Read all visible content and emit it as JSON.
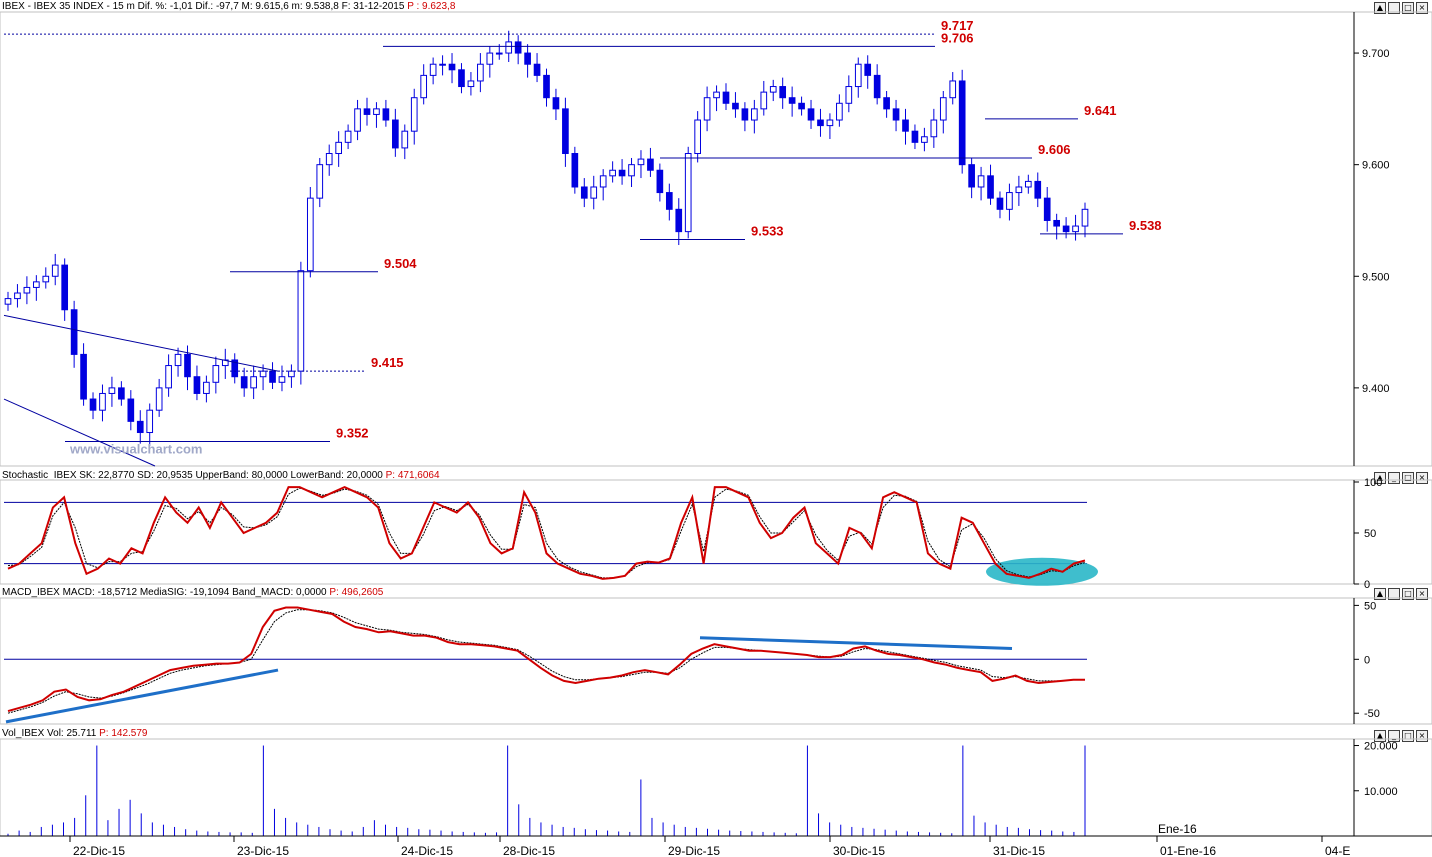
{
  "header": {
    "main": {
      "symbol": "IBEX - IBEX 35 INDEX - ",
      "interval": "15 m",
      "stats": " Dif. %: -1,01  Dif.: -97,7  M: 9.615,6  m: 9.538,8  F: 31-12-2015 ",
      "price": "P : 9.623,8"
    },
    "stoch": {
      "text": "Stochastic_IBEX SK: 22,8770  SD: 20,9535  UpperBand: 80,0000  LowerBand: 20,0000 ",
      "price": "P: 471,6064"
    },
    "macd": {
      "text": "MACD_IBEX MACD: -18,5712  MediaSIG: -19,1094  Band_MACD: 0,0000 ",
      "price": "P: 496,2605"
    },
    "vol": {
      "text": "Vol_IBEX Vol: 25.711 ",
      "price": "P: 142.579"
    }
  },
  "watermark": "www.visualchart.com",
  "window_buttons": [
    "▲",
    "_",
    "□",
    "×"
  ],
  "colors": {
    "candle": "#0000e0",
    "trendline": "#0000a0",
    "annotation": "#d00000",
    "stoch_k": "#d00000",
    "macd_line": "#d00000",
    "signal_line": "#000000",
    "highlight_ellipse": "#2ab7c8",
    "macd_divergence": "#1e6fc8"
  },
  "chart_data": [
    {
      "type": "candlestick",
      "title": "IBEX - IBEX 35 INDEX - 15 m",
      "y_ticks": [
        "9.700",
        "9.600",
        "9.500",
        "9.400"
      ],
      "ylim": [
        9330,
        9735
      ],
      "x_labels": [
        "22-Dic-15",
        "23-Dic-15",
        "24-Dic-15",
        "28-Dic-15",
        "29-Dic-15",
        "30-Dic-15",
        "31-Dic-15",
        "01-Ene-16",
        "04-E"
      ],
      "x_extra_label": "Ene-16",
      "annotations": [
        {
          "label": "9.717",
          "value": 9717
        },
        {
          "label": "9.706",
          "value": 9706
        },
        {
          "label": "9.641",
          "value": 9641
        },
        {
          "label": "9.606",
          "value": 9606
        },
        {
          "label": "9.533",
          "value": 9533
        },
        {
          "label": "9.538",
          "value": 9538
        },
        {
          "label": "9.504",
          "value": 9504
        },
        {
          "label": "9.415",
          "value": 9415
        },
        {
          "label": "9.352",
          "value": 9352
        }
      ],
      "close_series": [
        9480,
        9485,
        9490,
        9495,
        9500,
        9510,
        9470,
        9430,
        9390,
        9380,
        9395,
        9400,
        9390,
        9370,
        9360,
        9380,
        9400,
        9420,
        9430,
        9410,
        9395,
        9405,
        9420,
        9425,
        9410,
        9400,
        9410,
        9415,
        9405,
        9410,
        9415,
        9505,
        9570,
        9600,
        9610,
        9620,
        9630,
        9650,
        9645,
        9650,
        9640,
        9615,
        9630,
        9660,
        9680,
        9690,
        9690,
        9685,
        9670,
        9675,
        9690,
        9700,
        9700,
        9710,
        9700,
        9690,
        9680,
        9660,
        9650,
        9610,
        9580,
        9570,
        9580,
        9590,
        9595,
        9590,
        9600,
        9605,
        9595,
        9575,
        9560,
        9540,
        9610,
        9640,
        9660,
        9665,
        9655,
        9650,
        9640,
        9650,
        9665,
        9670,
        9660,
        9655,
        9650,
        9640,
        9635,
        9640,
        9655,
        9670,
        9690,
        9680,
        9660,
        9650,
        9640,
        9630,
        9620,
        9625,
        9640,
        9660,
        9675,
        9600,
        9580,
        9590,
        9570,
        9560,
        9575,
        9580,
        9585,
        9570,
        9550,
        9545,
        9540,
        9545,
        9560
      ]
    },
    {
      "type": "line",
      "title": "Stochastic_IBEX",
      "y_ticks": [
        "100",
        "50",
        "0"
      ],
      "ylim": [
        0,
        100
      ],
      "bands": [
        80,
        20
      ],
      "series": [
        {
          "name": "SK",
          "values": [
            15,
            20,
            30,
            40,
            75,
            85,
            40,
            10,
            15,
            25,
            20,
            35,
            30,
            60,
            85,
            70,
            60,
            75,
            55,
            80,
            65,
            50,
            55,
            60,
            70,
            95,
            95,
            90,
            85,
            90,
            95,
            90,
            85,
            75,
            40,
            25,
            30,
            55,
            80,
            75,
            70,
            80,
            65,
            40,
            30,
            35,
            90,
            70,
            30,
            20,
            15,
            10,
            8,
            5,
            6,
            8,
            20,
            22,
            21,
            25,
            60,
            85,
            20,
            95,
            95,
            90,
            85,
            60,
            45,
            50,
            65,
            75,
            40,
            30,
            20,
            55,
            50,
            35,
            85,
            90,
            85,
            80,
            30,
            20,
            15,
            65,
            60,
            40,
            20,
            10,
            8,
            6,
            10,
            15,
            12,
            20,
            23
          ]
        },
        {
          "name": "SD",
          "values": [
            18,
            19,
            27,
            36,
            67,
            80,
            55,
            20,
            16,
            22,
            22,
            30,
            32,
            52,
            77,
            74,
            64,
            71,
            60,
            75,
            68,
            56,
            55,
            58,
            66,
            88,
            94,
            91,
            87,
            89,
            93,
            91,
            87,
            78,
            50,
            30,
            30,
            48,
            72,
            76,
            72,
            78,
            68,
            48,
            34,
            34,
            78,
            75,
            40,
            24,
            17,
            12,
            9,
            6,
            6,
            8,
            17,
            21,
            21,
            24,
            52,
            78,
            32,
            85,
            93,
            91,
            87,
            66,
            50,
            50,
            61,
            72,
            48,
            33,
            23,
            47,
            51,
            39,
            75,
            87,
            86,
            81,
            42,
            24,
            17,
            53,
            59,
            45,
            25,
            13,
            9,
            7,
            9,
            13,
            12,
            18,
            21
          ]
        }
      ]
    },
    {
      "type": "line",
      "title": "MACD_IBEX",
      "y_ticks": [
        "50",
        "0",
        "-50"
      ],
      "ylim": [
        -60,
        55
      ],
      "series": [
        {
          "name": "MACD",
          "values": [
            -48,
            -45,
            -42,
            -38,
            -30,
            -28,
            -35,
            -38,
            -37,
            -33,
            -30,
            -25,
            -20,
            -15,
            -10,
            -8,
            -6,
            -5,
            -4,
            -4,
            -3,
            5,
            30,
            45,
            48,
            48,
            46,
            44,
            42,
            35,
            30,
            28,
            25,
            26,
            24,
            22,
            22,
            20,
            16,
            14,
            14,
            13,
            12,
            10,
            8,
            0,
            -8,
            -15,
            -20,
            -22,
            -20,
            -18,
            -17,
            -15,
            -12,
            -10,
            -12,
            -14,
            -5,
            5,
            10,
            14,
            12,
            10,
            8,
            8,
            7,
            6,
            5,
            4,
            2,
            2,
            4,
            10,
            12,
            8,
            5,
            4,
            2,
            0,
            -3,
            -5,
            -8,
            -10,
            -12,
            -20,
            -18,
            -15,
            -20,
            -22,
            -21,
            -20,
            -19,
            -19
          ]
        },
        {
          "name": "MediaSIG",
          "values": [
            -50,
            -47,
            -44,
            -40,
            -34,
            -30,
            -32,
            -35,
            -36,
            -34,
            -31,
            -27,
            -23,
            -18,
            -13,
            -10,
            -8,
            -6,
            -5,
            -4,
            -3,
            0,
            18,
            35,
            43,
            46,
            46,
            45,
            43,
            39,
            34,
            31,
            28,
            27,
            25,
            24,
            23,
            21,
            18,
            16,
            15,
            14,
            13,
            11,
            9,
            3,
            -4,
            -11,
            -16,
            -19,
            -19,
            -18,
            -17,
            -16,
            -14,
            -12,
            -12,
            -13,
            -8,
            0,
            6,
            11,
            11,
            10,
            9,
            8,
            7,
            6,
            5,
            4,
            3,
            2,
            3,
            7,
            10,
            9,
            7,
            5,
            3,
            1,
            -1,
            -3,
            -6,
            -8,
            -10,
            -16,
            -17,
            -16,
            -18,
            -20,
            -20,
            -20,
            -19,
            -19
          ]
        }
      ]
    },
    {
      "type": "bar",
      "title": "Vol_IBEX",
      "y_ticks": [
        "20.000",
        "10.000"
      ],
      "ylim": [
        0,
        21000
      ],
      "series": [
        {
          "name": "Vol",
          "values": [
            500,
            1200,
            900,
            2000,
            2500,
            3000,
            4000,
            9000,
            20000,
            3500,
            6000,
            8000,
            5000,
            3000,
            2500,
            2000,
            1500,
            1200,
            1000,
            900,
            800,
            800,
            700,
            20000,
            6000,
            4000,
            3000,
            2500,
            2000,
            1500,
            1200,
            1000,
            2000,
            3500,
            2500,
            2000,
            1800,
            1500,
            1400,
            1200,
            1000,
            900,
            800,
            700,
            800,
            20000,
            7000,
            4000,
            3000,
            2500,
            2000,
            1800,
            1500,
            1300,
            1200,
            1000,
            900,
            12500,
            4000,
            3000,
            2500,
            2000,
            1800,
            1600,
            1400,
            1200,
            1100,
            1000,
            900,
            800,
            700,
            600,
            20000,
            5000,
            3000,
            2500,
            2000,
            1800,
            1600,
            1400,
            1200,
            1000,
            900,
            800,
            700,
            600,
            20000,
            4500,
            3000,
            2500,
            2000,
            1800,
            1500,
            1300,
            1200,
            1000,
            900,
            20000
          ]
        }
      ]
    }
  ]
}
